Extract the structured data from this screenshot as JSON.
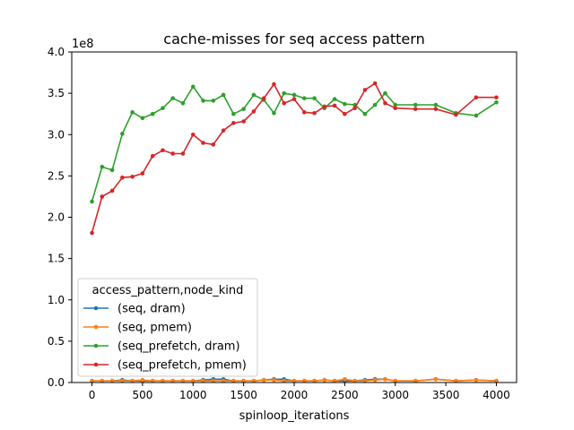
{
  "chart_data": {
    "type": "line",
    "title": "cache-misses for seq access pattern",
    "xlabel": "spinloop_iterations",
    "ylabel": "",
    "y_offset_label": "1e8",
    "xlim": [
      -200,
      4200
    ],
    "ylim": [
      0,
      4.0
    ],
    "y_scale_factor": 100000000,
    "x_ticks": [
      0,
      500,
      1000,
      1500,
      2000,
      2500,
      3000,
      3500,
      4000
    ],
    "y_ticks": [
      "0.0",
      "0.5",
      "1.0",
      "1.5",
      "2.0",
      "2.5",
      "3.0",
      "3.5",
      "4.0"
    ],
    "grid": false,
    "legend_title": "access_pattern,node_kind",
    "legend_placement": "lower-left",
    "x": [
      0,
      100,
      200,
      300,
      400,
      500,
      600,
      700,
      800,
      900,
      1000,
      1100,
      1200,
      1300,
      1400,
      1500,
      1600,
      1700,
      1800,
      1900,
      2000,
      2100,
      2200,
      2300,
      2400,
      2500,
      2600,
      2700,
      2800,
      2900,
      3000,
      3200,
      3400,
      3600,
      3800,
      4000
    ],
    "series": [
      {
        "name": "(seq, dram)",
        "color": "#1f77b4",
        "values": [
          0.02,
          0.02,
          0.02,
          0.03,
          0.02,
          0.02,
          0.02,
          0.02,
          0.02,
          0.02,
          0.02,
          0.03,
          0.04,
          0.04,
          0.02,
          0.02,
          0.02,
          0.03,
          0.04,
          0.04,
          0.02,
          0.02,
          0.02,
          0.03,
          0.02,
          0.02,
          0.02,
          0.03,
          0.04,
          0.04,
          0.02,
          0.02,
          0.04,
          0.02,
          0.03,
          0.02
        ]
      },
      {
        "name": "(seq, pmem)",
        "color": "#ff7f0e",
        "values": [
          0.02,
          0.02,
          0.02,
          0.02,
          0.02,
          0.03,
          0.02,
          0.02,
          0.02,
          0.02,
          0.02,
          0.02,
          0.02,
          0.02,
          0.02,
          0.02,
          0.02,
          0.03,
          0.03,
          0.02,
          0.02,
          0.02,
          0.02,
          0.03,
          0.02,
          0.04,
          0.02,
          0.02,
          0.03,
          0.04,
          0.02,
          0.02,
          0.04,
          0.02,
          0.03,
          0.02
        ]
      },
      {
        "name": "(seq_prefetch, dram)",
        "color": "#2ca02c",
        "values": [
          2.19,
          2.61,
          2.57,
          3.01,
          3.27,
          3.2,
          3.25,
          3.32,
          3.44,
          3.38,
          3.58,
          3.41,
          3.41,
          3.48,
          3.25,
          3.31,
          3.48,
          3.42,
          3.26,
          3.5,
          3.48,
          3.44,
          3.44,
          3.32,
          3.43,
          3.37,
          3.36,
          3.25,
          3.36,
          3.5,
          3.36,
          3.36,
          3.36,
          3.26,
          3.23,
          3.39
        ]
      },
      {
        "name": "(seq_prefetch, pmem)",
        "color": "#d62728",
        "values": [
          1.81,
          2.25,
          2.32,
          2.48,
          2.49,
          2.53,
          2.74,
          2.81,
          2.77,
          2.77,
          3.0,
          2.9,
          2.88,
          3.05,
          3.14,
          3.16,
          3.28,
          3.44,
          3.61,
          3.38,
          3.43,
          3.27,
          3.26,
          3.34,
          3.35,
          3.25,
          3.32,
          3.54,
          3.62,
          3.38,
          3.32,
          3.31,
          3.31,
          3.24,
          3.45,
          3.45
        ]
      }
    ]
  }
}
